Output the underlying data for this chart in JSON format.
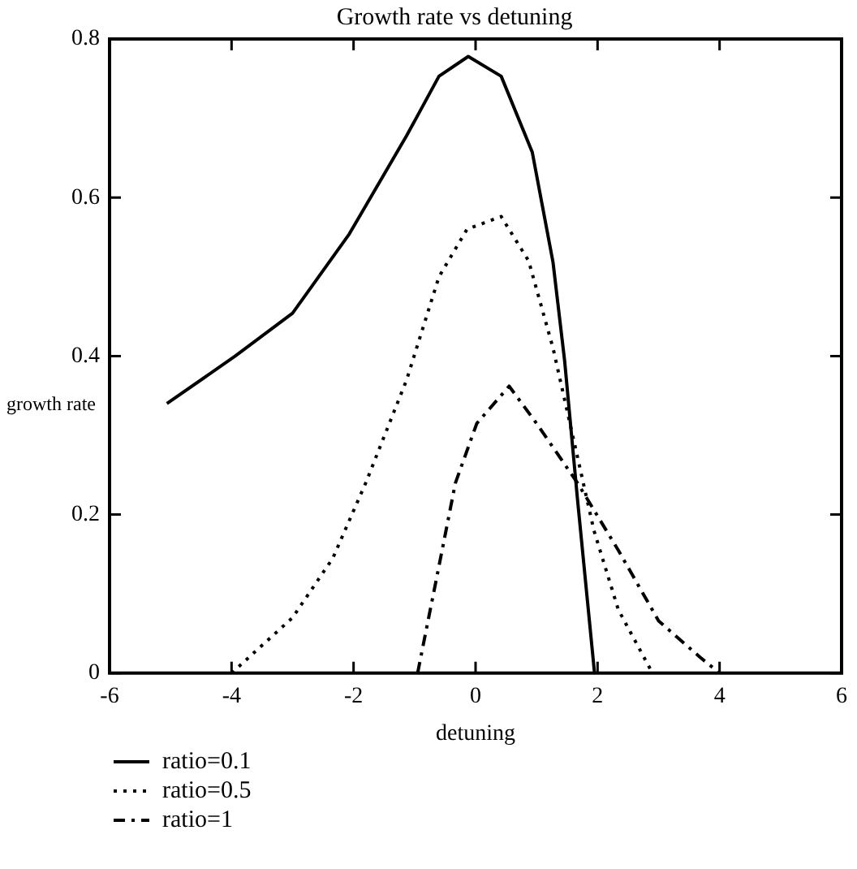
{
  "chart_data": {
    "type": "line",
    "title": "Growth rate vs detuning",
    "xlabel": "detuning",
    "ylabel": "growth rate",
    "xlim": [
      -6,
      6
    ],
    "xticks": [
      -6,
      -4,
      -2,
      0,
      2,
      4,
      6
    ],
    "ylim": [
      0,
      0.8
    ],
    "yticks": [
      0,
      0.2,
      0.4,
      0.6,
      0.8
    ],
    "grid": false,
    "legend": "bottom left",
    "marker": "none",
    "series": [
      {
        "name": "ratio=0.1",
        "color": "#000000",
        "line_style": "solid",
        "x": [
          -5.06,
          -3.94,
          -3.0,
          -2.07,
          -1.13,
          -0.6,
          -0.12,
          0.42,
          0.93,
          1.27,
          1.46,
          1.67,
          1.95
        ],
        "values": [
          0.34,
          0.4,
          0.454,
          0.554,
          0.678,
          0.753,
          0.778,
          0.753,
          0.657,
          0.518,
          0.394,
          0.22,
          0
        ]
      },
      {
        "name": "ratio=0.5",
        "color": "#000000",
        "line_style": "dotted",
        "x": [
          -4.0,
          -3.0,
          -2.34,
          -1.8,
          -1.13,
          -0.6,
          -0.14,
          0.42,
          0.87,
          1.27,
          1.62,
          1.94,
          2.34,
          2.9
        ],
        "values": [
          0,
          0.07,
          0.145,
          0.24,
          0.37,
          0.5,
          0.56,
          0.576,
          0.52,
          0.41,
          0.29,
          0.18,
          0.08,
          0
        ]
      },
      {
        "name": "ratio=1",
        "color": "#000000",
        "line_style": "dashed",
        "x": [
          -0.95,
          -0.6,
          -0.33,
          0.02,
          0.55,
          1.0,
          1.67,
          2.34,
          3.0,
          3.68,
          4.0
        ],
        "values": [
          0,
          0.135,
          0.24,
          0.315,
          0.362,
          0.315,
          0.24,
          0.155,
          0.066,
          0.02,
          0
        ]
      }
    ]
  }
}
